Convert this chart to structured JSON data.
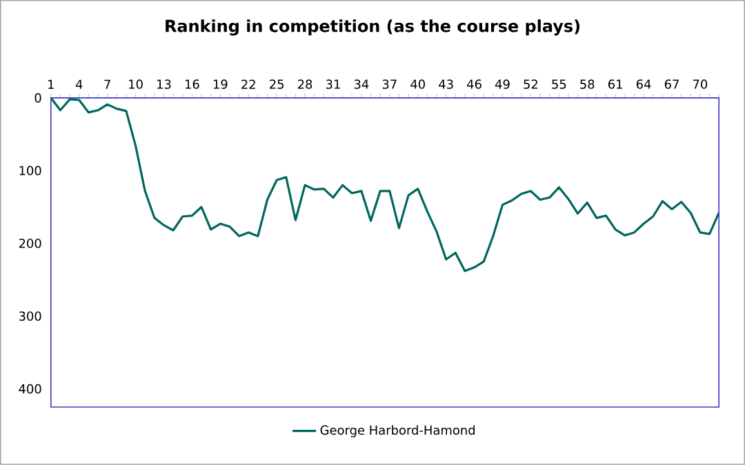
{
  "chart_data": {
    "type": "line",
    "title": "Ranking in competition (as the course plays)",
    "categories": [
      "1",
      null,
      null,
      "4",
      null,
      null,
      "7",
      null,
      null,
      "10",
      null,
      null,
      "13",
      null,
      null,
      "16",
      null,
      null,
      "19",
      null,
      null,
      "22",
      null,
      null,
      "25",
      null,
      null,
      "28",
      null,
      null,
      "31",
      null,
      null,
      "34",
      null,
      null,
      "37",
      null,
      null,
      "40",
      null,
      null,
      "43",
      null,
      null,
      "46",
      null,
      null,
      "49",
      null,
      null,
      "52",
      null,
      null,
      "55",
      null,
      null,
      "58",
      null,
      null,
      "61",
      null,
      null,
      "64",
      null,
      null,
      "67",
      null,
      null,
      "70",
      null,
      null
    ],
    "series": [
      {
        "name": "George Harbord-Hamond",
        "color": "#00665e",
        "values": [
          0,
          17,
          2,
          3,
          20,
          17,
          9,
          15,
          18,
          66,
          128,
          165,
          175,
          182,
          163,
          162,
          150,
          181,
          173,
          177,
          190,
          185,
          190,
          140,
          113,
          109,
          168,
          120,
          126,
          125,
          137,
          120,
          131,
          128,
          169,
          128,
          128,
          179,
          134,
          125,
          156,
          184,
          222,
          213,
          238,
          233,
          225,
          190,
          147,
          141,
          132,
          128,
          140,
          137,
          123,
          139,
          159,
          144,
          165,
          162,
          181,
          189,
          185,
          173,
          163,
          142,
          153,
          143,
          158,
          185,
          187,
          158
        ]
      }
    ],
    "ylim": [
      425,
      0
    ],
    "yticks": [
      0,
      100,
      200,
      300,
      400
    ],
    "legend": "bottom"
  }
}
